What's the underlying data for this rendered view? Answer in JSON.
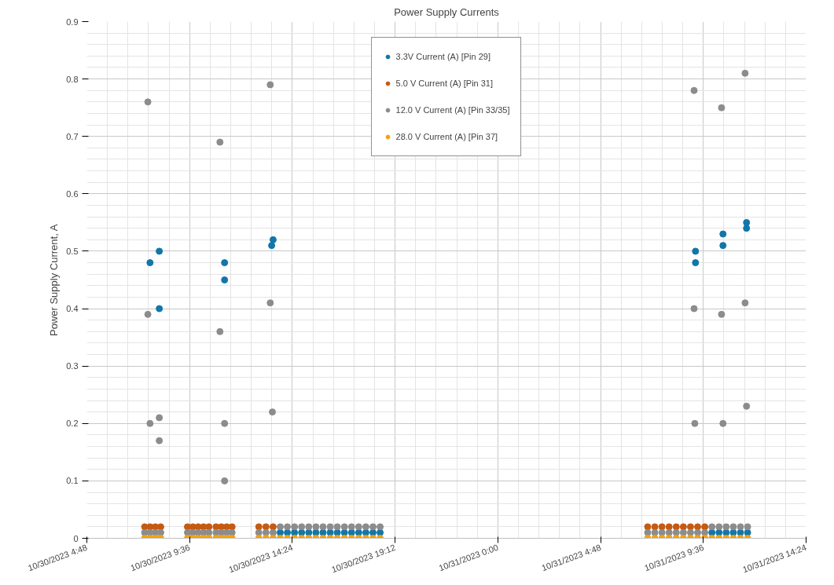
{
  "chart_data": {
    "type": "scatter",
    "title": "Power Supply Currents",
    "ylabel": "Power Supply Current, A",
    "xlim": [
      "2023-10-30T04:48",
      "2023-10-31T14:24"
    ],
    "xticks": [
      {
        "value": "2023-10-30T04:48",
        "label": "10/30/2023 4:48"
      },
      {
        "value": "2023-10-30T09:36",
        "label": "10/30/2023 9:36"
      },
      {
        "value": "2023-10-30T14:24",
        "label": "10/30/2023 14:24"
      },
      {
        "value": "2023-10-30T19:12",
        "label": "10/30/2023 19:12"
      },
      {
        "value": "2023-10-31T00:00",
        "label": "10/31/2023 0:00"
      },
      {
        "value": "2023-10-31T04:48",
        "label": "10/31/2023 4:48"
      },
      {
        "value": "2023-10-31T09:36",
        "label": "10/31/2023 9:36"
      },
      {
        "value": "2023-10-31T14:24",
        "label": "10/31/2023 14:24"
      }
    ],
    "ylim": [
      0,
      0.9
    ],
    "yticks": [
      0,
      0.1,
      0.2,
      0.3,
      0.4,
      0.5,
      0.6,
      0.7,
      0.8,
      0.9
    ],
    "grid": true,
    "legend": "top",
    "marker": "circle",
    "series": [
      {
        "name": "3.3V Current (A) [Pin 29]",
        "color": "#1276a8",
        "x": [
          "2023-10-30T07:45",
          "2023-10-30T08:11",
          "2023-10-30T08:11",
          "2023-10-30T11:14",
          "2023-10-30T11:14",
          "2023-10-30T13:26",
          "2023-10-30T13:30",
          "2023-10-31T09:14",
          "2023-10-31T09:14",
          "2023-10-31T10:31",
          "2023-10-31T10:31",
          "2023-10-31T11:37",
          "2023-10-31T11:37",
          "2023-10-30T13:50",
          "2023-10-30T14:10",
          "2023-10-30T14:30",
          "2023-10-30T14:50",
          "2023-10-30T15:10",
          "2023-10-30T15:30",
          "2023-10-30T15:50",
          "2023-10-30T16:10",
          "2023-10-30T16:30",
          "2023-10-30T16:50",
          "2023-10-30T17:10",
          "2023-10-30T17:30",
          "2023-10-30T17:50",
          "2023-10-30T18:10",
          "2023-10-30T18:30",
          "2023-10-31T10:00",
          "2023-10-31T10:20",
          "2023-10-31T10:40",
          "2023-10-31T11:00",
          "2023-10-31T11:20",
          "2023-10-31T11:40"
        ],
        "values": [
          0.48,
          0.5,
          0.4,
          0.48,
          0.45,
          0.51,
          0.52,
          0.5,
          0.48,
          0.53,
          0.51,
          0.55,
          0.54,
          0.01,
          0.01,
          0.01,
          0.01,
          0.01,
          0.01,
          0.01,
          0.01,
          0.01,
          0.01,
          0.01,
          0.01,
          0.01,
          0.01,
          0.01,
          0.01,
          0.01,
          0.01,
          0.01,
          0.01,
          0.01
        ]
      },
      {
        "name": "5.0 V Current (A) [Pin 31]",
        "color": "#c65a11",
        "x": [
          "2023-10-30T07:30",
          "2023-10-30T07:45",
          "2023-10-30T08:00",
          "2023-10-30T08:15",
          "2023-10-30T09:30",
          "2023-10-30T09:45",
          "2023-10-30T10:00",
          "2023-10-30T10:15",
          "2023-10-30T10:30",
          "2023-10-30T10:50",
          "2023-10-30T11:05",
          "2023-10-30T11:20",
          "2023-10-30T11:35",
          "2023-10-30T12:50",
          "2023-10-30T13:10",
          "2023-10-30T13:30",
          "2023-10-31T07:00",
          "2023-10-31T07:20",
          "2023-10-31T07:40",
          "2023-10-31T08:00",
          "2023-10-31T08:20",
          "2023-10-31T08:40",
          "2023-10-31T09:00",
          "2023-10-31T09:20",
          "2023-10-31T09:40"
        ],
        "values": [
          0.02,
          0.02,
          0.02,
          0.02,
          0.02,
          0.02,
          0.02,
          0.02,
          0.02,
          0.02,
          0.02,
          0.02,
          0.02,
          0.02,
          0.02,
          0.02,
          0.02,
          0.02,
          0.02,
          0.02,
          0.02,
          0.02,
          0.02,
          0.02,
          0.02
        ]
      },
      {
        "name": "12.0 V Current (A) [Pin 33/35]",
        "color": "#8c8c8c",
        "x": [
          "2023-10-30T07:39",
          "2023-10-30T07:39",
          "2023-10-30T07:45",
          "2023-10-30T08:11",
          "2023-10-30T08:11",
          "2023-10-30T11:01",
          "2023-10-30T11:01",
          "2023-10-30T11:14",
          "2023-10-30T11:14",
          "2023-10-30T13:22",
          "2023-10-30T13:22",
          "2023-10-30T13:28",
          "2023-10-31T09:10",
          "2023-10-31T09:10",
          "2023-10-31T09:12",
          "2023-10-31T10:27",
          "2023-10-31T10:27",
          "2023-10-31T10:31",
          "2023-10-31T11:33",
          "2023-10-31T11:33",
          "2023-10-31T11:37",
          "2023-10-30T07:30",
          "2023-10-30T07:45",
          "2023-10-30T08:00",
          "2023-10-30T08:15",
          "2023-10-30T09:30",
          "2023-10-30T09:45",
          "2023-10-30T10:00",
          "2023-10-30T10:15",
          "2023-10-30T10:30",
          "2023-10-30T10:50",
          "2023-10-30T11:05",
          "2023-10-30T11:20",
          "2023-10-30T11:35",
          "2023-10-30T12:50",
          "2023-10-30T13:10",
          "2023-10-30T13:30",
          "2023-10-31T07:00",
          "2023-10-31T07:20",
          "2023-10-31T07:40",
          "2023-10-31T08:00",
          "2023-10-31T08:20",
          "2023-10-31T08:40",
          "2023-10-31T09:00",
          "2023-10-31T09:20",
          "2023-10-31T09:40",
          "2023-10-30T13:50",
          "2023-10-30T14:10",
          "2023-10-30T14:30",
          "2023-10-30T14:50",
          "2023-10-30T15:10",
          "2023-10-30T15:30",
          "2023-10-30T15:50",
          "2023-10-30T16:10",
          "2023-10-30T16:30",
          "2023-10-30T16:50",
          "2023-10-30T17:10",
          "2023-10-30T17:30",
          "2023-10-30T17:50",
          "2023-10-30T18:10",
          "2023-10-30T18:30",
          "2023-10-31T10:00",
          "2023-10-31T10:20",
          "2023-10-31T10:40",
          "2023-10-31T11:00",
          "2023-10-31T11:20",
          "2023-10-31T11:40"
        ],
        "values": [
          0.76,
          0.39,
          0.2,
          0.21,
          0.17,
          0.69,
          0.36,
          0.2,
          0.1,
          0.79,
          0.41,
          0.22,
          0.78,
          0.4,
          0.2,
          0.75,
          0.39,
          0.2,
          0.81,
          0.41,
          0.23,
          0.01,
          0.01,
          0.01,
          0.01,
          0.01,
          0.01,
          0.01,
          0.01,
          0.01,
          0.01,
          0.01,
          0.01,
          0.01,
          0.01,
          0.01,
          0.01,
          0.01,
          0.01,
          0.01,
          0.01,
          0.01,
          0.01,
          0.01,
          0.01,
          0.01,
          0.02,
          0.02,
          0.02,
          0.02,
          0.02,
          0.02,
          0.02,
          0.02,
          0.02,
          0.02,
          0.02,
          0.02,
          0.02,
          0.02,
          0.02,
          0.02,
          0.02,
          0.02,
          0.02,
          0.02,
          0.02
        ]
      },
      {
        "name": "28.0 V Current (A) [Pin 37]",
        "color": "#f5a10a",
        "x": [
          "2023-10-30T07:30",
          "2023-10-30T07:45",
          "2023-10-30T08:00",
          "2023-10-30T08:15",
          "2023-10-30T09:30",
          "2023-10-30T09:45",
          "2023-10-30T10:00",
          "2023-10-30T10:15",
          "2023-10-30T10:30",
          "2023-10-30T10:50",
          "2023-10-30T11:05",
          "2023-10-30T11:20",
          "2023-10-30T11:35",
          "2023-10-30T12:50",
          "2023-10-30T13:10",
          "2023-10-30T13:30",
          "2023-10-30T13:50",
          "2023-10-30T14:10",
          "2023-10-30T14:30",
          "2023-10-30T14:50",
          "2023-10-30T15:10",
          "2023-10-30T15:30",
          "2023-10-30T15:50",
          "2023-10-30T16:10",
          "2023-10-30T16:30",
          "2023-10-30T16:50",
          "2023-10-30T17:10",
          "2023-10-30T17:30",
          "2023-10-30T17:50",
          "2023-10-30T18:10",
          "2023-10-30T18:30",
          "2023-10-31T07:00",
          "2023-10-31T07:20",
          "2023-10-31T07:40",
          "2023-10-31T08:00",
          "2023-10-31T08:20",
          "2023-10-31T08:40",
          "2023-10-31T09:00",
          "2023-10-31T09:20",
          "2023-10-31T09:40",
          "2023-10-31T10:00",
          "2023-10-31T10:20",
          "2023-10-31T10:40",
          "2023-10-31T11:00",
          "2023-10-31T11:20",
          "2023-10-31T11:40"
        ],
        "values": [
          0,
          0,
          0,
          0,
          0,
          0,
          0,
          0,
          0,
          0,
          0,
          0,
          0,
          0,
          0,
          0,
          0,
          0,
          0,
          0,
          0,
          0,
          0,
          0,
          0,
          0,
          0,
          0,
          0,
          0,
          0,
          0,
          0,
          0,
          0,
          0,
          0,
          0,
          0,
          0,
          0,
          0,
          0,
          0,
          0,
          0
        ]
      }
    ]
  }
}
